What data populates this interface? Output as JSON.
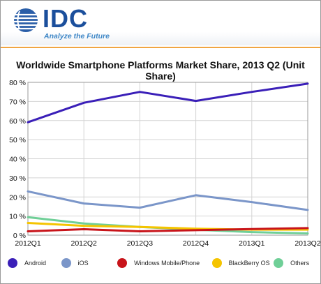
{
  "brand": {
    "name": "IDC",
    "tagline": "Analyze the Future"
  },
  "chart_data": {
    "type": "line",
    "title": "Worldwide Smartphone Platforms Market Share, 2013 Q2 (Unit Share)",
    "xlabel": "",
    "ylabel": "",
    "categories": [
      "2012Q1",
      "2012Q2",
      "2012Q3",
      "2012Q4",
      "2013Q1",
      "2013Q2"
    ],
    "ylim": [
      0,
      80
    ],
    "y_ticks": [
      0,
      10,
      20,
      30,
      40,
      50,
      60,
      70,
      80
    ],
    "y_tick_labels": [
      "0 %",
      "10 %",
      "20 %",
      "30 %",
      "40 %",
      "50 %",
      "60 %",
      "70 %",
      "80 %"
    ],
    "grid": true,
    "legend_position": "bottom",
    "series": [
      {
        "name": "Android",
        "color": "#3a1fb8",
        "values": [
          59.1,
          69.3,
          75.0,
          70.3,
          75.0,
          79.3
        ]
      },
      {
        "name": "iOS",
        "color": "#7b96c9",
        "values": [
          22.9,
          16.6,
          14.4,
          20.9,
          17.3,
          13.2
        ]
      },
      {
        "name": "Windows Mobile/Phone",
        "color": "#c8141a",
        "values": [
          2.0,
          3.1,
          2.0,
          2.6,
          3.2,
          3.7
        ]
      },
      {
        "name": "BlackBerry OS",
        "color": "#f5c400",
        "values": [
          6.4,
          4.9,
          4.3,
          3.4,
          2.9,
          2.9
        ]
      },
      {
        "name": "Others",
        "color": "#6fcf97",
        "values": [
          9.4,
          6.1,
          4.3,
          2.8,
          1.6,
          0.9
        ]
      }
    ]
  }
}
